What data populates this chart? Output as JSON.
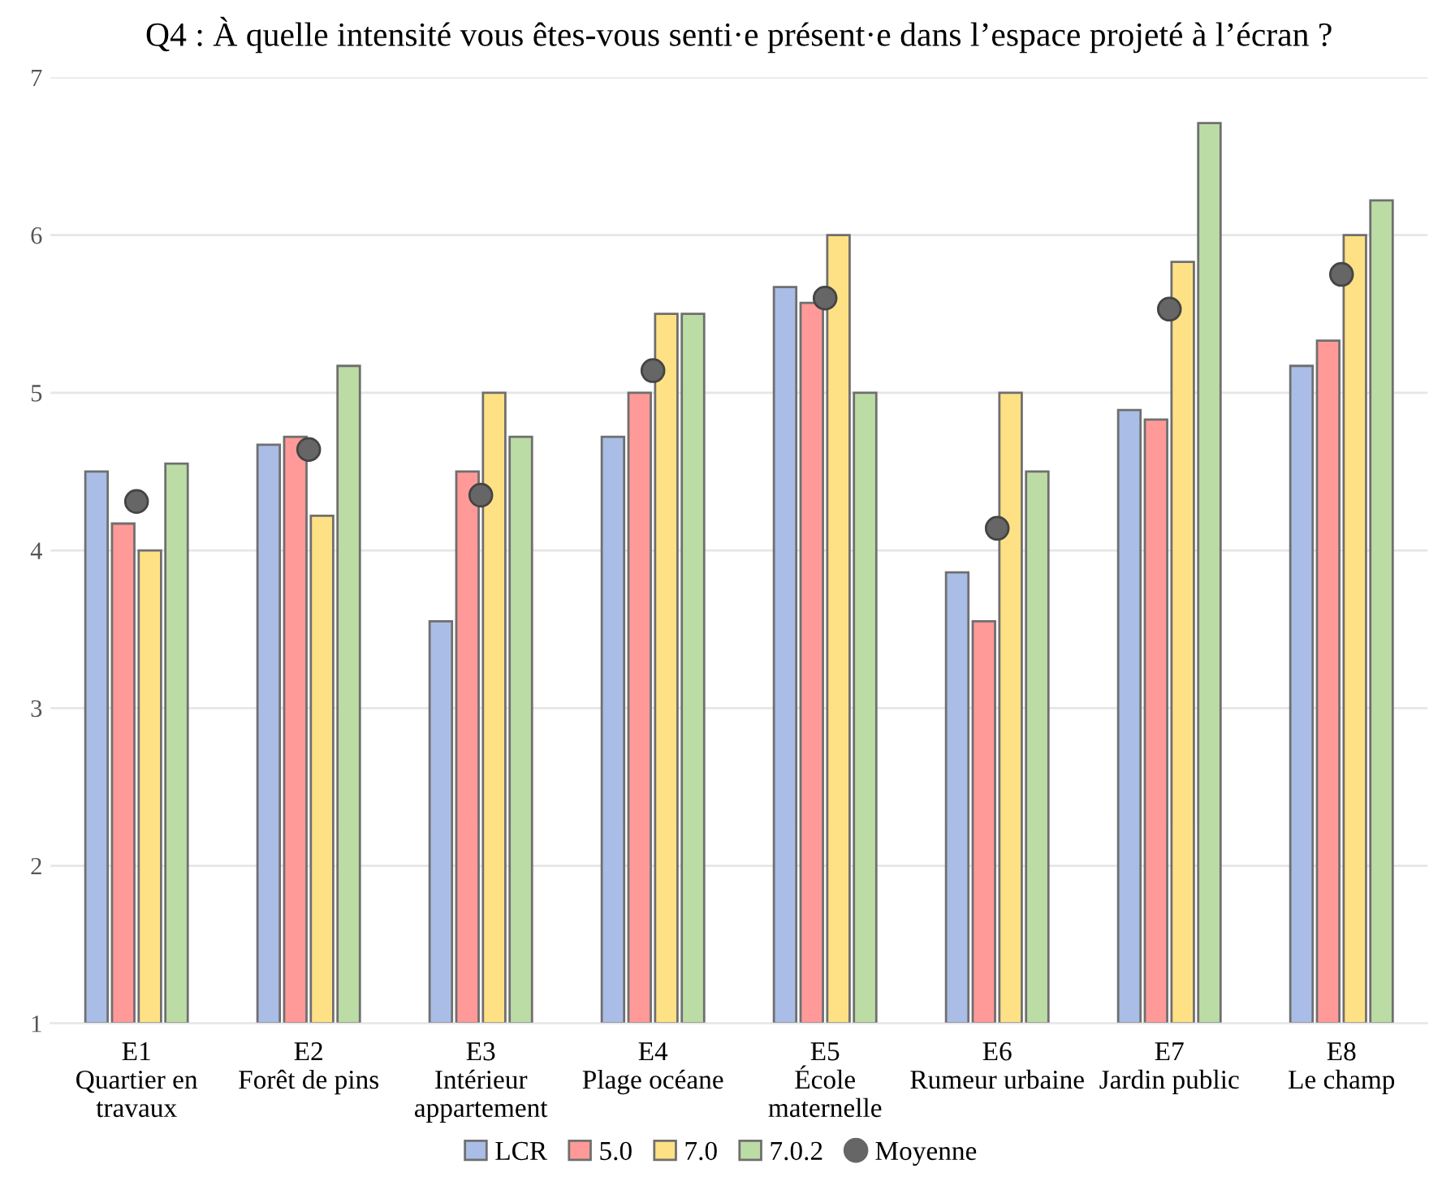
{
  "chart_data": {
    "type": "bar",
    "title": "Q4 : À quelle intensité vous êtes-vous senti·e présent·e dans l’espace projeté à l’écran ?",
    "categories": [
      "E1\nQuartier en\ntravaux",
      "E2\nForêt de pins",
      "E3\nIntérieur\nappartement",
      "E4\nPlage océane",
      "E5\nÉcole\nmaternelle",
      "E6\nRumeur urbaine",
      "E7\nJardin public",
      "E8\nLe champ"
    ],
    "series": [
      {
        "name": "LCR",
        "color": "#a9bde6",
        "values": [
          4.5,
          4.67,
          3.55,
          4.72,
          5.67,
          3.86,
          4.89,
          5.17
        ]
      },
      {
        "name": "5.0",
        "color": "#ff9a98",
        "values": [
          4.17,
          4.72,
          4.5,
          5.0,
          5.57,
          3.55,
          4.83,
          5.33
        ]
      },
      {
        "name": "7.0",
        "color": "#ffe185",
        "values": [
          4.0,
          4.22,
          5.0,
          5.5,
          6.0,
          5.0,
          5.83,
          6.0
        ]
      },
      {
        "name": "7.0.2",
        "color": "#bcdca5",
        "values": [
          4.55,
          5.17,
          4.72,
          5.5,
          5.0,
          4.5,
          6.71,
          6.22
        ]
      },
      {
        "name": "Moyenne",
        "type": "scatter",
        "marker": "circle",
        "color": "#666666",
        "x": [
          "E1\nQuartier en\ntravaux",
          "E2\nForêt de pins",
          "E3\nIntérieur\nappartement",
          "E4\nPlage océane",
          "E5\nÉcole\nmaternelle",
          "E6\nRumeur urbaine",
          "E7\nJardin public",
          "E8\nLe champ"
        ],
        "values": [
          4.31,
          4.64,
          4.35,
          5.14,
          5.6,
          4.14,
          5.53,
          5.75
        ]
      }
    ],
    "ylim": [
      1,
      7
    ],
    "yticks": [
      1,
      2,
      3,
      4,
      5,
      6,
      7
    ],
    "grid": "y",
    "legend": "bottom"
  }
}
